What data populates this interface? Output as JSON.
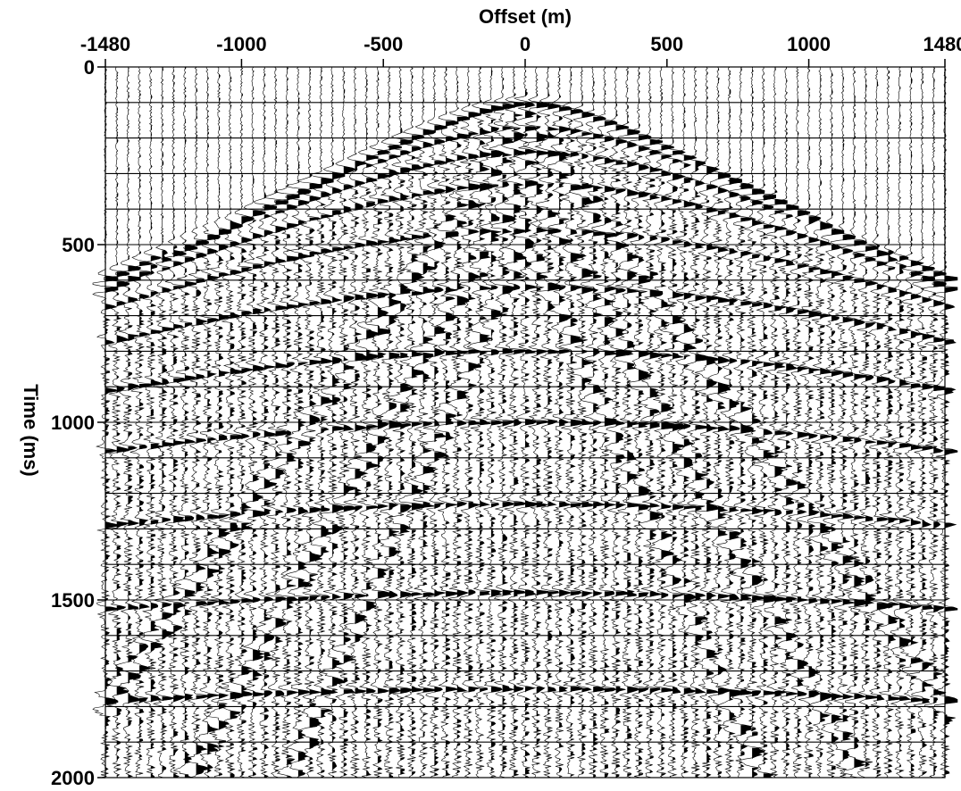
{
  "chart_data": {
    "type": "seismic-wiggle",
    "title": "",
    "xlabel": "Offset (m)",
    "ylabel": "Time (ms)",
    "x_axis_position": "top",
    "y_axis_direction": "down",
    "xlim": [
      -1480,
      1480
    ],
    "ylim": [
      0,
      2000
    ],
    "x_ticks": [
      -1480,
      -1000,
      -500,
      0,
      500,
      1000,
      1480
    ],
    "x_tick_labels": [
      "-1480",
      "-1000",
      "-500",
      "0",
      "500",
      "1000",
      "1480"
    ],
    "y_ticks": [
      0,
      500,
      1000,
      1500,
      2000
    ],
    "y_tick_labels": [
      "0",
      "500",
      "1000",
      "1500",
      "2000"
    ],
    "grid": true,
    "trace_spacing_m": 40,
    "sample_interval_ms": 4,
    "timing_lines_ms": [
      100,
      200,
      300,
      400,
      500,
      600,
      700,
      800,
      900,
      1000,
      1100,
      1200,
      1300,
      1400,
      1500,
      1600,
      1700,
      1800,
      1900
    ],
    "events": [
      {
        "kind": "direct-arrival",
        "t0_ms": 105,
        "velocity_m_per_s": 2400
      },
      {
        "kind": "reflection",
        "t0_ms": 170,
        "velocity_m_per_s": 2600
      },
      {
        "kind": "reflection",
        "t0_ms": 240,
        "velocity_m_per_s": 2700
      },
      {
        "kind": "reflection",
        "t0_ms": 330,
        "velocity_m_per_s": 2800
      },
      {
        "kind": "reflection",
        "t0_ms": 460,
        "velocity_m_per_s": 3000
      },
      {
        "kind": "reflection",
        "t0_ms": 620,
        "velocity_m_per_s": 3200
      },
      {
        "kind": "reflection",
        "t0_ms": 800,
        "velocity_m_per_s": 3400
      },
      {
        "kind": "reflection",
        "t0_ms": 1000,
        "velocity_m_per_s": 3600
      },
      {
        "kind": "reflection",
        "t0_ms": 1230,
        "velocity_m_per_s": 3800
      },
      {
        "kind": "reflection",
        "t0_ms": 1480,
        "velocity_m_per_s": 4000
      },
      {
        "kind": "reflection",
        "t0_ms": 1750,
        "velocity_m_per_s": 4200
      },
      {
        "kind": "ground-roll",
        "t0_ms": 150,
        "velocity_m_per_s": 900
      },
      {
        "kind": "ground-roll",
        "t0_ms": 300,
        "velocity_m_per_s": 700
      },
      {
        "kind": "ground-roll",
        "t0_ms": 480,
        "velocity_m_per_s": 550
      }
    ]
  }
}
